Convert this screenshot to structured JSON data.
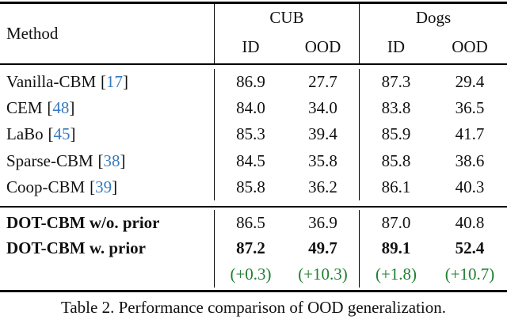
{
  "colors": {
    "citation_blue": "#3779BE",
    "delta_green": "#1E8032",
    "rule_black": "#000000"
  },
  "table": {
    "bracket_open": "[",
    "bracket_close": "]",
    "header": {
      "method_label": "Method",
      "groups": [
        {
          "label": "CUB",
          "sub": [
            "ID",
            "OOD"
          ]
        },
        {
          "label": "Dogs",
          "sub": [
            "ID",
            "OOD"
          ]
        }
      ]
    },
    "baseline_rows": [
      {
        "method": "Vanilla-CBM",
        "cite": "17",
        "values": [
          "86.9",
          "27.7",
          "87.3",
          "29.4"
        ]
      },
      {
        "method": "CEM",
        "cite": "48",
        "values": [
          "84.0",
          "34.0",
          "83.8",
          "36.5"
        ]
      },
      {
        "method": "LaBo",
        "cite": "45",
        "values": [
          "85.3",
          "39.4",
          "85.9",
          "41.7"
        ]
      },
      {
        "method": "Sparse-CBM",
        "cite": "38",
        "values": [
          "84.5",
          "35.8",
          "85.8",
          "38.6"
        ]
      },
      {
        "method": "Coop-CBM",
        "cite": "39",
        "values": [
          "85.8",
          "36.2",
          "86.1",
          "40.3"
        ]
      }
    ],
    "dot_rows": [
      {
        "method": "DOT-CBM w/o. prior",
        "values": [
          "86.5",
          "36.9",
          "87.0",
          "40.8"
        ]
      },
      {
        "method": "DOT-CBM w. prior",
        "values": [
          "87.2",
          "49.7",
          "89.1",
          "52.4"
        ]
      }
    ],
    "delta_row": {
      "values": [
        "(+0.3)",
        "(+10.3)",
        "(+1.8)",
        "(+10.7)"
      ]
    }
  },
  "caption": "Table 2. Performance comparison of OOD generalization."
}
